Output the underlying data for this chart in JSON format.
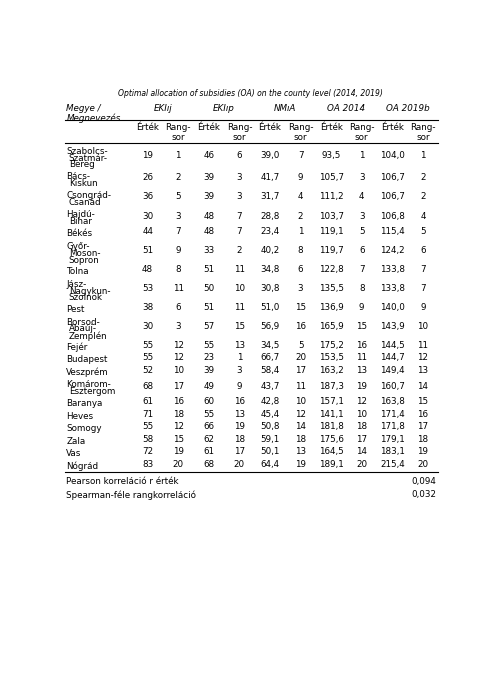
{
  "title_it": "Optimal allocation of subsidies (OA) on the county level (2014, 2019)",
  "col_groups": [
    "EKIıj",
    "EKIıp",
    "NMıA",
    "OA 2014",
    "OA 2019b"
  ],
  "rows": [
    {
      "name": "Szabolcs-\nSzatmár-\nBereg",
      "vals": [
        19,
        1,
        46,
        6,
        "39,0",
        7,
        "93,5",
        1,
        "104,0",
        1
      ]
    },
    {
      "name": "Bács-\nKiskun",
      "vals": [
        26,
        2,
        39,
        3,
        "41,7",
        9,
        "105,7",
        3,
        "106,7",
        2
      ]
    },
    {
      "name": "Csongrád-\nCsanád",
      "vals": [
        36,
        5,
        39,
        3,
        "31,7",
        4,
        "111,2",
        4,
        "106,7",
        2
      ]
    },
    {
      "name": "Hajdú-\nBihar",
      "vals": [
        30,
        3,
        48,
        7,
        "28,8",
        2,
        "103,7",
        3,
        "106,8",
        4
      ]
    },
    {
      "name": "Békés",
      "vals": [
        44,
        7,
        48,
        7,
        "23,4",
        1,
        "119,1",
        5,
        "115,4",
        5
      ]
    },
    {
      "name": "Győr-\nMoson-\nSopron",
      "vals": [
        51,
        9,
        33,
        2,
        "40,2",
        8,
        "119,7",
        6,
        "124,2",
        6
      ]
    },
    {
      "name": "Tolna",
      "vals": [
        48,
        8,
        51,
        11,
        "34,8",
        6,
        "122,8",
        7,
        "133,8",
        7
      ]
    },
    {
      "name": "Jász-\nNagykun-\nSzolnok",
      "vals": [
        53,
        11,
        50,
        10,
        "30,8",
        3,
        "135,5",
        8,
        "133,8",
        7
      ]
    },
    {
      "name": "Pest",
      "vals": [
        38,
        6,
        51,
        11,
        "51,0",
        15,
        "136,9",
        9,
        "140,0",
        9
      ]
    },
    {
      "name": "Borsod-\nAbaúj-\nZemplén",
      "vals": [
        30,
        3,
        57,
        15,
        "56,9",
        16,
        "165,9",
        15,
        "143,9",
        10
      ]
    },
    {
      "name": "Fejér",
      "vals": [
        55,
        12,
        55,
        13,
        "34,5",
        5,
        "175,2",
        16,
        "144,5",
        11
      ]
    },
    {
      "name": "Budapest",
      "vals": [
        55,
        12,
        23,
        1,
        "66,7",
        20,
        "153,5",
        11,
        "144,7",
        12
      ]
    },
    {
      "name": "Veszprém",
      "vals": [
        52,
        10,
        39,
        3,
        "58,4",
        17,
        "163,2",
        13,
        "149,4",
        13
      ]
    },
    {
      "name": "Komárom-\nEsztergom",
      "vals": [
        68,
        17,
        49,
        9,
        "43,7",
        11,
        "187,3",
        19,
        "160,7",
        14
      ]
    },
    {
      "name": "Baranya",
      "vals": [
        61,
        16,
        60,
        16,
        "42,8",
        10,
        "157,1",
        12,
        "163,8",
        15
      ]
    },
    {
      "name": "Heves",
      "vals": [
        71,
        18,
        55,
        13,
        "45,4",
        12,
        "141,1",
        10,
        "171,4",
        16
      ]
    },
    {
      "name": "Somogy",
      "vals": [
        55,
        12,
        66,
        19,
        "50,8",
        14,
        "181,8",
        18,
        "171,8",
        17
      ]
    },
    {
      "name": "Zala",
      "vals": [
        58,
        15,
        62,
        18,
        "59,1",
        18,
        "175,6",
        17,
        "179,1",
        18
      ]
    },
    {
      "name": "Vas",
      "vals": [
        72,
        19,
        61,
        17,
        "50,1",
        13,
        "164,5",
        14,
        "183,1",
        19
      ]
    },
    {
      "name": "Nógrád",
      "vals": [
        83,
        20,
        68,
        20,
        "64,4",
        19,
        "189,1",
        20,
        "215,4",
        20
      ]
    }
  ],
  "footer": [
    {
      "label": "Pearson korreláció r érték",
      "value": "0,094"
    },
    {
      "label": "Spearman-féle rangkorreláció",
      "value": "0,032"
    }
  ],
  "bg_color": "#ffffff",
  "text_color": "#000000",
  "line_color": "#000000",
  "title_fs": 5.5,
  "header_fs": 6.3,
  "data_fs": 6.3,
  "footer_fs": 6.3
}
